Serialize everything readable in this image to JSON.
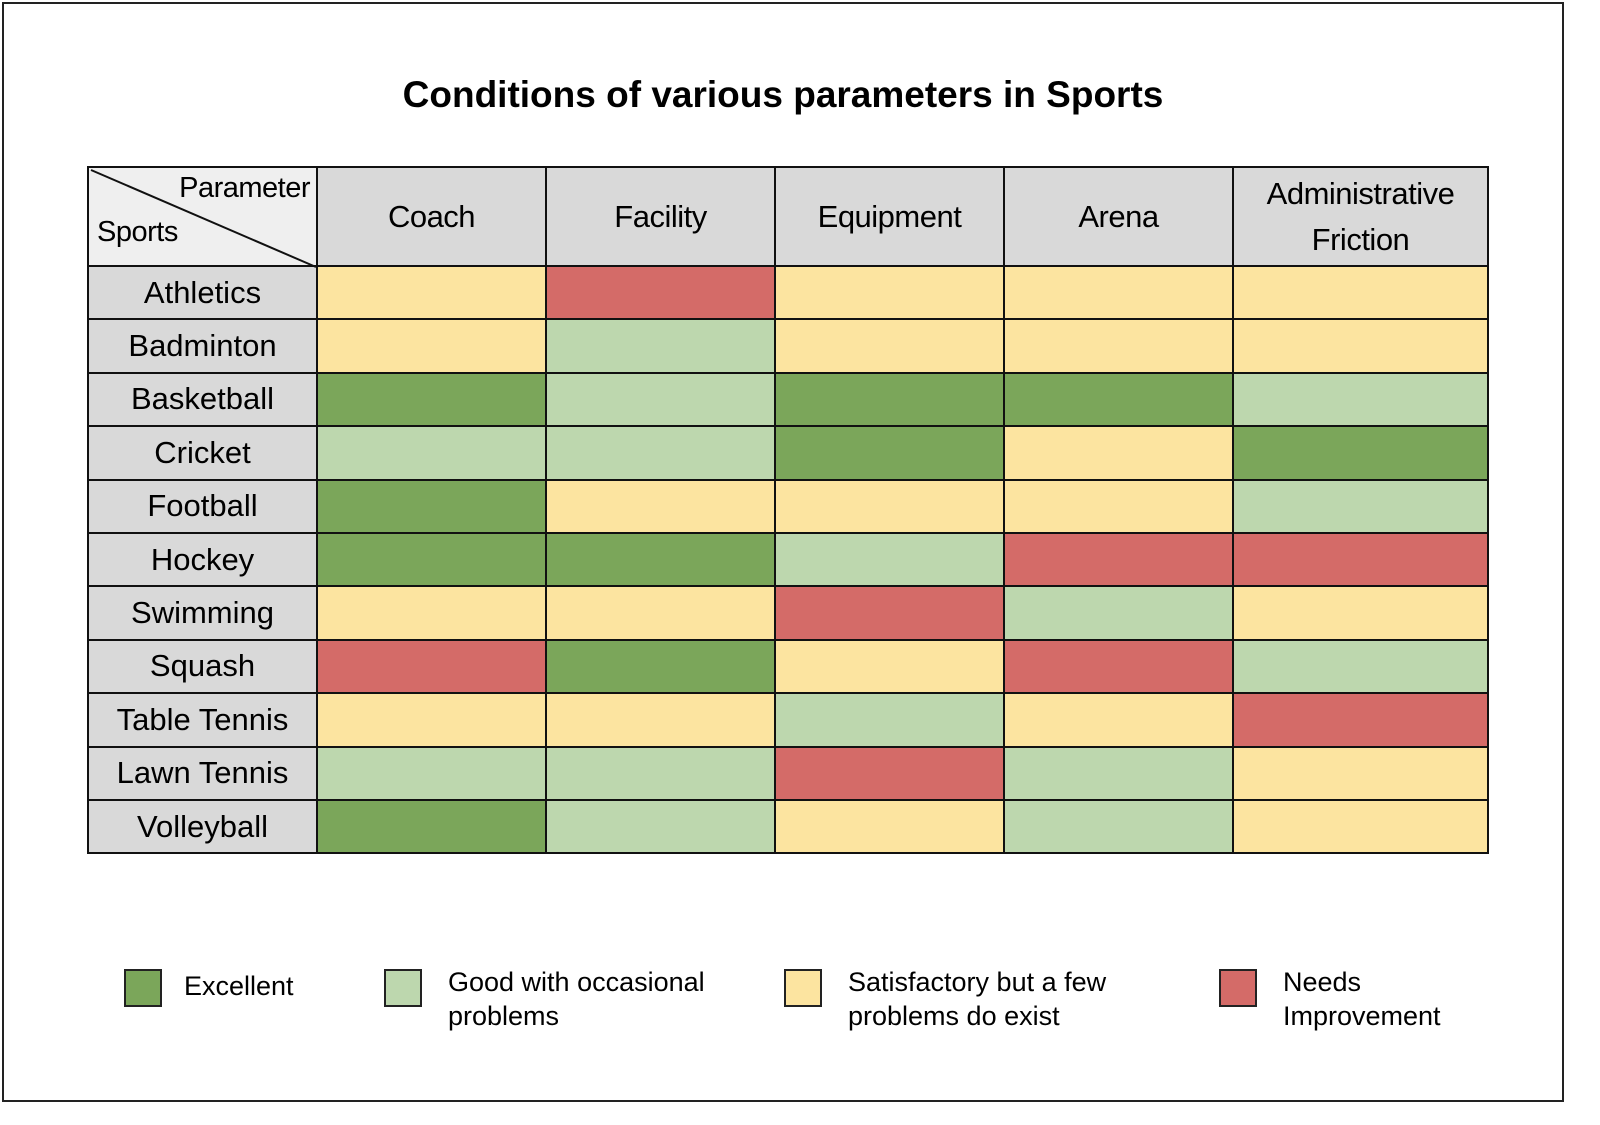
{
  "chart_data": {
    "type": "heatmap",
    "title": "Conditions of various parameters in Sports",
    "corner": {
      "column_header": "Parameter",
      "row_header": "Sports"
    },
    "columns": [
      "Coach",
      "Facility",
      "Equipment",
      "Arena",
      "Administrative Friction"
    ],
    "rows": [
      "Athletics",
      "Badminton",
      "Basketball",
      "Cricket",
      "Football",
      "Hockey",
      "Swimming",
      "Squash",
      "Table Tennis",
      "Lawn Tennis",
      "Volleyball"
    ],
    "levels": {
      "E": {
        "label": "Excellent",
        "color": "#7ba65a"
      },
      "G": {
        "label": "Good with occasional problems",
        "color": "#bdd7ae"
      },
      "S": {
        "label": "Satisfactory but a few problems do exist",
        "color": "#fce4a0"
      },
      "N": {
        "label": "Needs Improvement",
        "color": "#d46b68"
      }
    },
    "legend_order": [
      "E",
      "G",
      "S",
      "N"
    ],
    "legend_placement": "bottom",
    "values": [
      [
        "S",
        "N",
        "S",
        "S",
        "S"
      ],
      [
        "S",
        "G",
        "S",
        "S",
        "S"
      ],
      [
        "E",
        "G",
        "E",
        "E",
        "G"
      ],
      [
        "G",
        "G",
        "E",
        "S",
        "E"
      ],
      [
        "E",
        "S",
        "S",
        "S",
        "G"
      ],
      [
        "E",
        "E",
        "G",
        "N",
        "N"
      ],
      [
        "S",
        "S",
        "N",
        "G",
        "S"
      ],
      [
        "N",
        "E",
        "S",
        "N",
        "G"
      ],
      [
        "S",
        "S",
        "G",
        "S",
        "N"
      ],
      [
        "G",
        "G",
        "N",
        "G",
        "S"
      ],
      [
        "E",
        "G",
        "S",
        "G",
        "S"
      ]
    ]
  }
}
